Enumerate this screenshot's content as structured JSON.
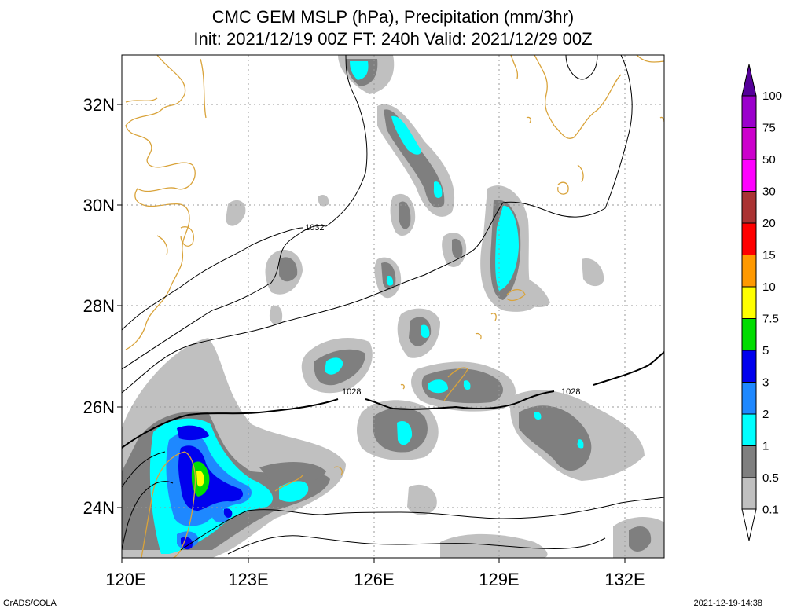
{
  "title": "CMC GEM MSLP (hPa), Precipitation (mm/3hr)",
  "subtitle": "Init: 2021/12/19 00Z  FT: 240h  Valid: 2021/12/29 00Z",
  "footer_left": "GrADS/COLA",
  "footer_right": "2021-12-19-14:38",
  "axes": {
    "lat_labels": [
      "32N",
      "30N",
      "28N",
      "26N",
      "24N"
    ],
    "lon_labels": [
      "120E",
      "123E",
      "126E",
      "129E",
      "132E"
    ]
  },
  "isobar_labels": [
    "1032",
    "1028",
    "1028"
  ],
  "colorbar": {
    "labels": [
      "100",
      "75",
      "50",
      "30",
      "20",
      "15",
      "10",
      "7.5",
      "5",
      "3",
      "2",
      "1",
      "0.5",
      "0.1"
    ],
    "colors": [
      "#9b00cc",
      "#cc00cc",
      "#ff00ff",
      "#aa3333",
      "#ff0000",
      "#ff9900",
      "#ffff00",
      "#00dd00",
      "#0000ee",
      "#1e88ff",
      "#00ffff",
      "#7f7f7f",
      "#c0c0c0"
    ],
    "top_color": "#550099"
  },
  "colors": {
    "coast": "#d9a33a",
    "precip_01": "#c0c0c0",
    "precip_05": "#7f7f7f",
    "precip_1": "#00ffff",
    "precip_2": "#1e88ff",
    "precip_3": "#0000ee",
    "precip_5": "#00dd00",
    "precip_75": "#ffff00"
  }
}
